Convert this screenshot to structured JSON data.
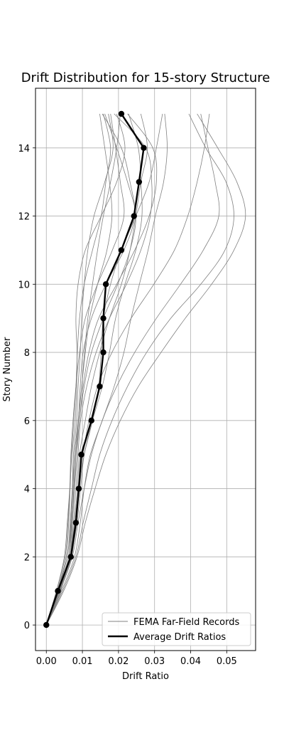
{
  "chart_data": {
    "type": "line",
    "title": "Drift Distribution for 15-story Structure",
    "xlabel": "Drift Ratio",
    "ylabel": "Story Number",
    "xlim": [
      -0.003,
      0.058
    ],
    "ylim": [
      -0.75,
      15.75
    ],
    "xticks": [
      0.0,
      0.01,
      0.02,
      0.03,
      0.04,
      0.05
    ],
    "xtick_labels": [
      "0.00",
      "0.01",
      "0.02",
      "0.03",
      "0.04",
      "0.05"
    ],
    "yticks": [
      0,
      2,
      4,
      6,
      8,
      10,
      12,
      14
    ],
    "ytick_labels": [
      "0",
      "2",
      "4",
      "6",
      "8",
      "10",
      "12",
      "14"
    ],
    "grid": true,
    "legend_placement": "lower-right",
    "legend": [
      {
        "label": "FEMA Far-Field Records",
        "color": "#808080",
        "style": "thin"
      },
      {
        "label": "Average Drift Ratios",
        "color": "#000000",
        "style": "thick"
      }
    ],
    "stories": [
      0,
      1,
      2,
      3,
      4,
      5,
      6,
      7,
      8,
      9,
      10,
      11,
      12,
      13,
      14,
      15
    ],
    "average": {
      "name": "Average Drift Ratios",
      "color": "#000000",
      "values": [
        0.0,
        0.0032,
        0.0068,
        0.0082,
        0.009,
        0.0097,
        0.0125,
        0.0148,
        0.0158,
        0.0158,
        0.0165,
        0.0208,
        0.0243,
        0.0257,
        0.027,
        0.0208
      ]
    },
    "records": {
      "name": "FEMA Far-Field Records",
      "color": "#808080",
      "series": [
        [
          0.0,
          0.004,
          0.0062,
          0.0068,
          0.0072,
          0.0075,
          0.0084,
          0.0088,
          0.0094,
          0.0098,
          0.0105,
          0.0115,
          0.0132,
          0.0162,
          0.0185,
          0.0172
        ],
        [
          0.0,
          0.0035,
          0.0065,
          0.0072,
          0.0078,
          0.0082,
          0.0092,
          0.0102,
          0.0118,
          0.0145,
          0.0195,
          0.0245,
          0.0285,
          0.0305,
          0.0295,
          0.0225
        ],
        [
          0.0,
          0.0028,
          0.0052,
          0.006,
          0.0065,
          0.0068,
          0.0074,
          0.0082,
          0.0092,
          0.0108,
          0.0142,
          0.0183,
          0.0215,
          0.0205,
          0.0192,
          0.0178
        ],
        [
          0.0,
          0.0045,
          0.0082,
          0.0102,
          0.0125,
          0.0148,
          0.0182,
          0.0225,
          0.0278,
          0.0345,
          0.0428,
          0.0495,
          0.052,
          0.0498,
          0.0442,
          0.0395
        ],
        [
          0.0,
          0.0042,
          0.0078,
          0.0094,
          0.0105,
          0.0122,
          0.0155,
          0.0188,
          0.0215,
          0.0235,
          0.0258,
          0.0282,
          0.0302,
          0.0325,
          0.0335,
          0.0328
        ],
        [
          0.0,
          0.0035,
          0.0068,
          0.0085,
          0.0095,
          0.0105,
          0.0128,
          0.0155,
          0.0175,
          0.0192,
          0.0218,
          0.0248,
          0.0265,
          0.0262,
          0.0255,
          0.0228
        ],
        [
          0.0,
          0.0032,
          0.0058,
          0.0068,
          0.0074,
          0.0078,
          0.0089,
          0.0098,
          0.0106,
          0.0115,
          0.0128,
          0.0142,
          0.0158,
          0.0178,
          0.0195,
          0.0205
        ],
        [
          0.0,
          0.0038,
          0.0066,
          0.0075,
          0.0082,
          0.0088,
          0.0095,
          0.0112,
          0.0138,
          0.0175,
          0.0222,
          0.0262,
          0.0288,
          0.0292,
          0.0275,
          0.0188
        ],
        [
          0.0,
          0.0048,
          0.0085,
          0.0108,
          0.0135,
          0.0165,
          0.0205,
          0.0255,
          0.0318,
          0.0385,
          0.0458,
          0.052,
          0.0552,
          0.0528,
          0.0475,
          0.0418
        ],
        [
          0.0,
          0.0034,
          0.0062,
          0.0071,
          0.0076,
          0.0081,
          0.0089,
          0.0094,
          0.0102,
          0.0125,
          0.0165,
          0.0215,
          0.0245,
          0.0232,
          0.0208,
          0.0155
        ],
        [
          0.0,
          0.003,
          0.0055,
          0.0062,
          0.0066,
          0.007,
          0.0076,
          0.0082,
          0.0086,
          0.0092,
          0.0105,
          0.0128,
          0.0152,
          0.0165,
          0.0178,
          0.0158
        ],
        [
          0.0,
          0.0038,
          0.007,
          0.0082,
          0.0092,
          0.0102,
          0.0118,
          0.0142,
          0.0182,
          0.0235,
          0.0298,
          0.0355,
          0.0392,
          0.0418,
          0.0438,
          0.0452
        ],
        [
          0.0,
          0.0036,
          0.0068,
          0.0078,
          0.0086,
          0.0092,
          0.0108,
          0.0125,
          0.0148,
          0.0175,
          0.0208,
          0.0232,
          0.0248,
          0.0262,
          0.028,
          0.0262
        ],
        [
          0.0,
          0.0028,
          0.005,
          0.0058,
          0.0065,
          0.0071,
          0.008,
          0.0084,
          0.0085,
          0.0082,
          0.0088,
          0.0108,
          0.0152,
          0.0195,
          0.0218,
          0.0195
        ],
        [
          0.0,
          0.0035,
          0.0065,
          0.0078,
          0.009,
          0.0105,
          0.0128,
          0.0145,
          0.0152,
          0.0158,
          0.0178,
          0.0208,
          0.0248,
          0.0285,
          0.0305,
          0.0322
        ],
        [
          0.0,
          0.0032,
          0.0062,
          0.007,
          0.0078,
          0.0085,
          0.0092,
          0.0105,
          0.0125,
          0.0158,
          0.0198,
          0.0232,
          0.0248,
          0.0225,
          0.0195,
          0.0162
        ],
        [
          0.0,
          0.003,
          0.0058,
          0.0066,
          0.0072,
          0.0078,
          0.0088,
          0.0098,
          0.0108,
          0.012,
          0.0142,
          0.0168,
          0.0182,
          0.0175,
          0.0162,
          0.0148
        ],
        [
          0.0,
          0.0038,
          0.0072,
          0.0088,
          0.0105,
          0.0125,
          0.0155,
          0.0195,
          0.0245,
          0.0305,
          0.0372,
          0.0435,
          0.0478,
          0.0468,
          0.0448,
          0.0428
        ]
      ]
    }
  }
}
